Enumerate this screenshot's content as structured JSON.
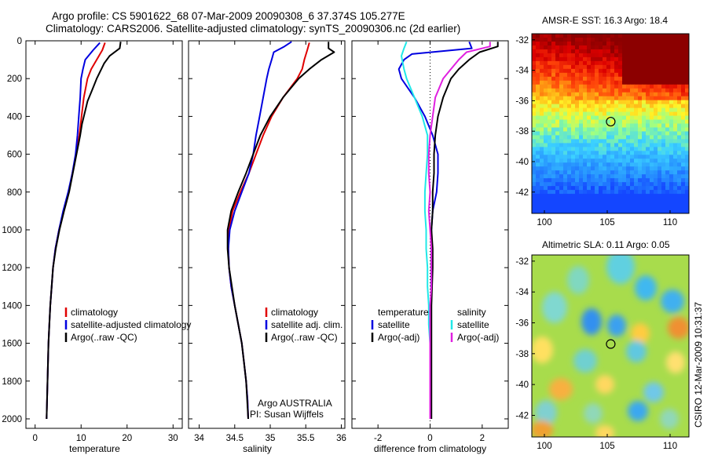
{
  "figure": {
    "title_line1": "Argo profile: CS 5901622_68 07-Mar-2009 20090308_6 37.374S 105.277E",
    "title_line2": "Climatology: CARS2006. Satellite-adjusted climatology: synTS_20090306.nc (2d earlier)",
    "credit": "Argo AUSTRALIA",
    "pi": "PI: Susan Wijffels",
    "stamp": "CSIRO 12-Mar-2009 10:31:37"
  },
  "colors": {
    "climatology": "#e00000",
    "satellite": "#0000e0",
    "argo": "#000000",
    "cyan": "#20e0e8",
    "magenta": "#e020e0"
  },
  "chart_data": [
    {
      "type": "line",
      "id": "temperature",
      "xlabel": "temperature",
      "ylabel": "",
      "xlim": [
        -2,
        32
      ],
      "ylim": [
        2050,
        0
      ],
      "xticks": [
        0,
        10,
        20,
        30
      ],
      "yticks": [
        0,
        200,
        400,
        600,
        800,
        1000,
        1200,
        1400,
        1600,
        1800,
        2000
      ],
      "legend": [
        "climatology",
        "satellite-adjusted climatology",
        "Argo(..raw -QC)"
      ],
      "series": [
        {
          "name": "climatology",
          "color": "#e00000",
          "y": [
            10,
            50,
            100,
            150,
            200,
            300,
            400,
            500,
            600,
            700,
            800,
            900,
            1000,
            1100,
            1200,
            1300,
            1400,
            1500,
            1600,
            1700,
            1800,
            1900,
            2000
          ],
          "x": [
            15.2,
            14.6,
            13.4,
            12.2,
            11.4,
            10.6,
            10.1,
            9.6,
            8.9,
            8.1,
            7.3,
            6.2,
            5.2,
            4.4,
            3.9,
            3.6,
            3.3,
            3.1,
            2.9,
            2.8,
            2.7,
            2.6,
            2.5
          ]
        },
        {
          "name": "satellite-adjusted climatology",
          "color": "#0000e0",
          "y": [
            10,
            50,
            100,
            150,
            200,
            300,
            400,
            500,
            600,
            700,
            800,
            900,
            1000,
            1100,
            1200,
            1300,
            1400,
            1500,
            1600,
            1700,
            1800,
            1900,
            2000
          ],
          "x": [
            14.1,
            12.6,
            10.9,
            10.4,
            10.0,
            9.8,
            9.5,
            9.2,
            8.8,
            8.1,
            7.2,
            6.1,
            5.2,
            4.4,
            3.9,
            3.6,
            3.3,
            3.1,
            2.9,
            2.8,
            2.7,
            2.6,
            2.5
          ]
        },
        {
          "name": "Argo(..raw -QC)",
          "color": "#000000",
          "y": [
            5,
            40,
            80,
            120,
            160,
            200,
            260,
            320,
            380,
            440,
            500,
            600,
            700,
            800,
            900,
            1000,
            1100,
            1200,
            1400,
            1600,
            1800,
            2000
          ],
          "x": [
            18.6,
            18.4,
            16.2,
            15.0,
            14.2,
            13.4,
            12.4,
            11.4,
            10.8,
            10.2,
            9.8,
            9.0,
            8.2,
            7.4,
            6.3,
            5.3,
            4.5,
            3.9,
            3.3,
            2.9,
            2.7,
            2.5
          ]
        }
      ]
    },
    {
      "type": "line",
      "id": "salinity",
      "xlabel": "salinity",
      "ylabel": "",
      "xlim": [
        33.85,
        36.05
      ],
      "ylim": [
        2050,
        0
      ],
      "xticks": [
        34,
        34.5,
        35,
        35.5,
        36
      ],
      "legend": [
        "climatology",
        "satellite adj. clim.",
        "Argo(..raw -QC)"
      ],
      "series": [
        {
          "name": "climatology",
          "color": "#e00000",
          "y": [
            10,
            50,
            100,
            150,
            200,
            300,
            400,
            500,
            600,
            700,
            800,
            900,
            1000,
            1100,
            1200,
            1300,
            1400,
            1500,
            1600,
            1700,
            1800,
            1900,
            2000
          ],
          "x": [
            35.55,
            35.52,
            35.48,
            35.45,
            35.38,
            35.18,
            35.02,
            34.9,
            34.8,
            34.7,
            34.58,
            34.47,
            34.42,
            34.41,
            34.42,
            34.45,
            34.5,
            34.55,
            34.6,
            34.63,
            34.66,
            34.68,
            34.69
          ]
        },
        {
          "name": "satellite adj. clim.",
          "color": "#0000e0",
          "y": [
            5,
            30,
            60,
            100,
            150,
            200,
            300,
            400,
            500,
            600,
            700,
            800,
            900,
            1000,
            1100,
            1200,
            1300,
            1400,
            1500,
            1600,
            1700,
            1800,
            1900,
            2000
          ],
          "x": [
            35.3,
            35.2,
            35.05,
            35.02,
            34.98,
            34.95,
            34.9,
            34.85,
            34.8,
            34.76,
            34.7,
            34.6,
            34.5,
            34.43,
            34.41,
            34.42,
            34.45,
            34.5,
            34.55,
            34.6,
            34.63,
            34.66,
            34.68,
            34.69
          ]
        },
        {
          "name": "Argo(..raw -QC)",
          "color": "#000000",
          "y": [
            5,
            40,
            60,
            100,
            150,
            200,
            300,
            400,
            500,
            600,
            700,
            800,
            900,
            1000,
            1100,
            1200,
            1400,
            1600,
            1800,
            2000
          ],
          "x": [
            35.82,
            35.82,
            35.9,
            35.72,
            35.55,
            35.4,
            35.18,
            35.0,
            34.86,
            34.76,
            34.66,
            34.55,
            34.45,
            34.4,
            34.4,
            34.42,
            34.5,
            34.6,
            34.66,
            34.69
          ]
        }
      ]
    },
    {
      "type": "line",
      "id": "difference",
      "xlabel": "difference from climatology",
      "ylabel": "",
      "xlim": [
        -3,
        3
      ],
      "ylim": [
        2050,
        0
      ],
      "xticks": [
        -2,
        0,
        2
      ],
      "legend_groups": [
        {
          "heading": "temperature",
          "items": [
            "satellite",
            "Argo(-adj)"
          ]
        },
        {
          "heading": "salinity",
          "items": [
            "satellite",
            "Argo(-adj)"
          ]
        }
      ],
      "series": [
        {
          "name": "temperature satellite",
          "color": "#0000e0",
          "y": [
            5,
            40,
            70,
            100,
            150,
            200,
            300,
            400,
            500,
            600,
            700,
            800,
            900,
            1000,
            1100,
            1200,
            1400,
            1600,
            1800,
            2000
          ],
          "x": [
            1.5,
            1.6,
            -0.7,
            -1.0,
            -1.2,
            -1.1,
            -0.6,
            -0.2,
            0.1,
            0.3,
            0.3,
            0.25,
            0.1,
            0.05,
            0.05,
            0.05,
            0.04,
            0.03,
            0.02,
            0.02
          ]
        },
        {
          "name": "temperature Argo(-adj)",
          "color": "#000000",
          "y": [
            5,
            30,
            60,
            100,
            150,
            200,
            300,
            400,
            500,
            600,
            700,
            800,
            900,
            1000,
            1100,
            1200,
            1400,
            1600,
            1800,
            2000
          ],
          "x": [
            2.6,
            2.6,
            1.9,
            1.5,
            1.1,
            0.8,
            0.5,
            0.3,
            0.2,
            0.15,
            0.15,
            0.1,
            0.1,
            0.05,
            0.1,
            0.1,
            0.05,
            0.05,
            0.05,
            0.05
          ]
        },
        {
          "name": "salinity satellite",
          "color": "#20e8e8",
          "y": [
            5,
            40,
            80,
            150,
            200,
            300,
            400,
            500,
            600,
            700,
            800,
            900,
            1000,
            1100,
            1200,
            1300,
            1400,
            1500,
            1600,
            1800,
            2000
          ],
          "x": [
            -0.9,
            -1.0,
            -1.1,
            -1.0,
            -0.9,
            -0.6,
            -0.3,
            -0.1,
            -0.1,
            -0.15,
            -0.2,
            -0.2,
            -0.15,
            -0.15,
            -0.1,
            -0.1,
            -0.05,
            -0.05,
            0.0,
            0.0,
            0.0
          ]
        },
        {
          "name": "salinity Argo(-adj)",
          "color": "#e020e0",
          "y": [
            5,
            30,
            60,
            100,
            150,
            200,
            300,
            400,
            500,
            600,
            700,
            800,
            900,
            1000,
            1100,
            1200,
            1300,
            1400,
            1600,
            1800,
            2000
          ],
          "x": [
            2.3,
            2.3,
            1.4,
            1.1,
            0.8,
            0.5,
            0.2,
            0.1,
            0.0,
            -0.05,
            -0.05,
            0.0,
            -0.05,
            0.0,
            0.05,
            0.05,
            0.05,
            0.0,
            0.0,
            0.0,
            0.0
          ]
        }
      ]
    },
    {
      "type": "heatmap",
      "id": "sst",
      "title": "AMSR-E SST: 16.3 Argo: 18.4",
      "xticks": [
        100,
        105,
        110
      ],
      "yticks": [
        -32,
        -34,
        -36,
        -38,
        -40,
        -42
      ],
      "xlim": [
        99,
        111.5
      ],
      "ylim": [
        -43.4,
        -31.6
      ],
      "marker": {
        "lon": 105.277,
        "lat": -37.374
      }
    },
    {
      "type": "heatmap",
      "id": "sla",
      "title": "Altimetric SLA: 0.11 Argo: 0.05",
      "xticks": [
        100,
        105,
        110
      ],
      "yticks": [
        -32,
        -34,
        -36,
        -38,
        -40,
        -42
      ],
      "xlim": [
        99,
        111.5
      ],
      "ylim": [
        -43.4,
        -31.6
      ],
      "marker": {
        "lon": 105.277,
        "lat": -37.374
      }
    }
  ]
}
